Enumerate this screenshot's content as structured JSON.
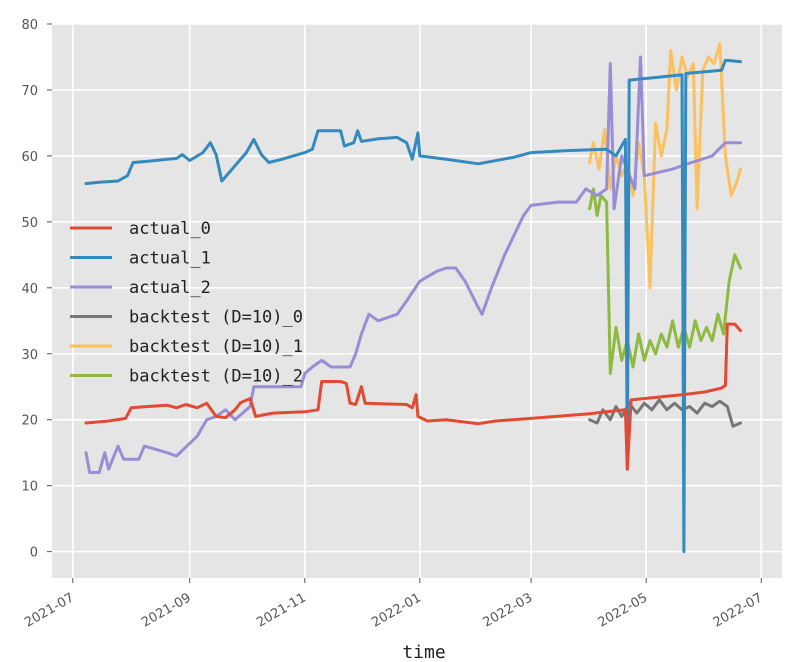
{
  "chart_data": {
    "type": "line",
    "title": "",
    "xlabel": "time",
    "ylabel": "",
    "xlim": [
      "2021-06-20",
      "2022-07-12"
    ],
    "ylim": [
      -4,
      80
    ],
    "x_ticks": [
      "2021-07-01",
      "2021-09-01",
      "2021-11-01",
      "2022-01-01",
      "2022-03-01",
      "2022-05-01",
      "2022-07-01"
    ],
    "x_tick_labels": [
      "2021-07",
      "2021-09",
      "2021-11",
      "2022-01",
      "2022-03",
      "2022-05",
      "2022-07"
    ],
    "y_ticks": [
      0,
      10,
      20,
      30,
      40,
      50,
      60,
      70,
      80
    ],
    "grid": true,
    "legend_position": "center-left",
    "series": [
      {
        "name": "actual_0",
        "color": "#E24A33",
        "points": [
          [
            "2021-07-08",
            19.5
          ],
          [
            "2021-07-20",
            19.8
          ],
          [
            "2021-07-29",
            20.2
          ],
          [
            "2021-08-01",
            21.8
          ],
          [
            "2021-08-10",
            22.0
          ],
          [
            "2021-08-20",
            22.2
          ],
          [
            "2021-08-25",
            21.8
          ],
          [
            "2021-08-30",
            22.3
          ],
          [
            "2021-09-05",
            21.8
          ],
          [
            "2021-09-10",
            22.5
          ],
          [
            "2021-09-15",
            20.5
          ],
          [
            "2021-09-20",
            20.3
          ],
          [
            "2021-09-25",
            21.5
          ],
          [
            "2021-09-28",
            22.6
          ],
          [
            "2021-10-03",
            23.2
          ],
          [
            "2021-10-06",
            20.5
          ],
          [
            "2021-10-15",
            21.0
          ],
          [
            "2021-11-01",
            21.2
          ],
          [
            "2021-11-08",
            21.5
          ],
          [
            "2021-11-10",
            25.8
          ],
          [
            "2021-11-20",
            25.8
          ],
          [
            "2021-11-23",
            25.5
          ],
          [
            "2021-11-25",
            22.5
          ],
          [
            "2021-11-28",
            22.3
          ],
          [
            "2021-12-01",
            25.0
          ],
          [
            "2021-12-03",
            22.5
          ],
          [
            "2021-12-25",
            22.3
          ],
          [
            "2021-12-28",
            21.8
          ],
          [
            "2021-12-30",
            23.8
          ],
          [
            "2021-12-31",
            20.5
          ],
          [
            "2022-01-05",
            19.8
          ],
          [
            "2022-01-15",
            20.0
          ],
          [
            "2022-02-01",
            19.4
          ],
          [
            "2022-02-10",
            19.8
          ],
          [
            "2022-03-01",
            20.2
          ],
          [
            "2022-04-01",
            20.9
          ],
          [
            "2022-04-10",
            21.2
          ],
          [
            "2022-04-20",
            21.5
          ],
          [
            "2022-04-21",
            12.5
          ],
          [
            "2022-04-23",
            23.0
          ],
          [
            "2022-05-10",
            23.5
          ],
          [
            "2022-05-20",
            23.8
          ],
          [
            "2022-06-01",
            24.2
          ],
          [
            "2022-06-10",
            24.8
          ],
          [
            "2022-06-12",
            25.2
          ],
          [
            "2022-06-13",
            34.5
          ],
          [
            "2022-06-17",
            34.5
          ],
          [
            "2022-06-20",
            33.5
          ]
        ]
      },
      {
        "name": "actual_1",
        "color": "#348ABD",
        "points": [
          [
            "2021-07-08",
            55.8
          ],
          [
            "2021-07-15",
            56.0
          ],
          [
            "2021-07-25",
            56.2
          ],
          [
            "2021-07-30",
            57.0
          ],
          [
            "2021-08-02",
            59.0
          ],
          [
            "2021-08-10",
            59.2
          ],
          [
            "2021-08-20",
            59.5
          ],
          [
            "2021-08-25",
            59.6
          ],
          [
            "2021-08-28",
            60.2
          ],
          [
            "2021-09-01",
            59.3
          ],
          [
            "2021-09-08",
            60.5
          ],
          [
            "2021-09-12",
            62.0
          ],
          [
            "2021-09-15",
            60.2
          ],
          [
            "2021-09-18",
            56.2
          ],
          [
            "2021-09-22",
            57.5
          ],
          [
            "2021-10-01",
            60.5
          ],
          [
            "2021-10-05",
            62.5
          ],
          [
            "2021-10-09",
            60.2
          ],
          [
            "2021-10-13",
            59.0
          ],
          [
            "2021-10-20",
            59.5
          ],
          [
            "2021-11-01",
            60.5
          ],
          [
            "2021-11-05",
            61.0
          ],
          [
            "2021-11-08",
            63.8
          ],
          [
            "2021-11-20",
            63.8
          ],
          [
            "2021-11-22",
            61.5
          ],
          [
            "2021-11-27",
            62.0
          ],
          [
            "2021-11-29",
            63.8
          ],
          [
            "2021-12-01",
            62.2
          ],
          [
            "2021-12-10",
            62.6
          ],
          [
            "2021-12-20",
            62.8
          ],
          [
            "2021-12-25",
            62.0
          ],
          [
            "2021-12-28",
            59.5
          ],
          [
            "2021-12-31",
            63.5
          ],
          [
            "2022-01-01",
            60.0
          ],
          [
            "2022-01-15",
            59.5
          ],
          [
            "2022-02-01",
            58.8
          ],
          [
            "2022-02-20",
            59.8
          ],
          [
            "2022-03-01",
            60.5
          ],
          [
            "2022-03-20",
            60.8
          ],
          [
            "2022-04-10",
            61.0
          ],
          [
            "2022-04-15",
            60.0
          ],
          [
            "2022-04-20",
            62.5
          ],
          [
            "2022-04-21",
            13.0
          ],
          [
            "2022-04-22",
            71.5
          ],
          [
            "2022-05-10",
            72.0
          ],
          [
            "2022-05-20",
            72.3
          ],
          [
            "2022-05-21",
            0.0
          ],
          [
            "2022-05-22",
            72.5
          ],
          [
            "2022-06-10",
            73.0
          ],
          [
            "2022-06-12",
            74.5
          ],
          [
            "2022-06-20",
            74.3
          ]
        ]
      },
      {
        "name": "actual_2",
        "color": "#988ED5",
        "points": [
          [
            "2021-07-08",
            15.0
          ],
          [
            "2021-07-10",
            12.0
          ],
          [
            "2021-07-15",
            12.0
          ],
          [
            "2021-07-18",
            15.0
          ],
          [
            "2021-07-20",
            12.5
          ],
          [
            "2021-07-25",
            16.0
          ],
          [
            "2021-07-28",
            14.0
          ],
          [
            "2021-08-05",
            14.0
          ],
          [
            "2021-08-08",
            16.0
          ],
          [
            "2021-08-20",
            15.0
          ],
          [
            "2021-08-25",
            14.5
          ],
          [
            "2021-09-05",
            17.5
          ],
          [
            "2021-09-10",
            20.0
          ],
          [
            "2021-09-15",
            20.5
          ],
          [
            "2021-09-20",
            21.5
          ],
          [
            "2021-09-25",
            20.0
          ],
          [
            "2021-10-03",
            22.0
          ],
          [
            "2021-10-05",
            25.0
          ],
          [
            "2021-10-30",
            25.0
          ],
          [
            "2021-11-01",
            27.0
          ],
          [
            "2021-11-05",
            28.0
          ],
          [
            "2021-11-10",
            29.0
          ],
          [
            "2021-11-15",
            28.0
          ],
          [
            "2021-11-25",
            28.0
          ],
          [
            "2021-11-28",
            30.0
          ],
          [
            "2021-12-01",
            33.0
          ],
          [
            "2021-12-05",
            36.0
          ],
          [
            "2021-12-10",
            35.0
          ],
          [
            "2021-12-20",
            36.0
          ],
          [
            "2021-12-25",
            38.0
          ],
          [
            "2022-01-01",
            41.0
          ],
          [
            "2022-01-10",
            42.5
          ],
          [
            "2022-01-15",
            43.0
          ],
          [
            "2022-01-20",
            43.0
          ],
          [
            "2022-01-25",
            41.0
          ],
          [
            "2022-02-01",
            37.0
          ],
          [
            "2022-02-03",
            36.0
          ],
          [
            "2022-02-08",
            40.0
          ],
          [
            "2022-02-15",
            45.0
          ],
          [
            "2022-02-25",
            51.0
          ],
          [
            "2022-03-01",
            52.5
          ],
          [
            "2022-03-15",
            53.0
          ],
          [
            "2022-03-25",
            53.0
          ],
          [
            "2022-03-30",
            55.0
          ],
          [
            "2022-04-05",
            54.0
          ],
          [
            "2022-04-10",
            55.0
          ],
          [
            "2022-04-12",
            74.0
          ],
          [
            "2022-04-14",
            52.0
          ],
          [
            "2022-04-18",
            60.0
          ],
          [
            "2022-04-25",
            55.0
          ],
          [
            "2022-04-28",
            75.0
          ],
          [
            "2022-04-30",
            57.0
          ],
          [
            "2022-05-15",
            58.0
          ],
          [
            "2022-05-25",
            59.0
          ],
          [
            "2022-06-05",
            60.0
          ],
          [
            "2022-06-12",
            62.0
          ],
          [
            "2022-06-20",
            62.0
          ]
        ]
      },
      {
        "name": "backtest (D=10)_0",
        "color": "#777777",
        "points": [
          [
            "2022-04-01",
            20.0
          ],
          [
            "2022-04-05",
            19.5
          ],
          [
            "2022-04-08",
            21.5
          ],
          [
            "2022-04-12",
            20.0
          ],
          [
            "2022-04-15",
            22.0
          ],
          [
            "2022-04-18",
            20.5
          ],
          [
            "2022-04-22",
            22.5
          ],
          [
            "2022-04-26",
            21.0
          ],
          [
            "2022-04-30",
            22.5
          ],
          [
            "2022-05-04",
            21.5
          ],
          [
            "2022-05-08",
            23.0
          ],
          [
            "2022-05-12",
            21.5
          ],
          [
            "2022-05-16",
            22.5
          ],
          [
            "2022-05-20",
            21.5
          ],
          [
            "2022-05-24",
            22.0
          ],
          [
            "2022-05-28",
            21.0
          ],
          [
            "2022-06-01",
            22.5
          ],
          [
            "2022-06-05",
            22.0
          ],
          [
            "2022-06-09",
            22.8
          ],
          [
            "2022-06-13",
            22.0
          ],
          [
            "2022-06-16",
            19.0
          ],
          [
            "2022-06-20",
            19.5
          ]
        ]
      },
      {
        "name": "backtest (D=10)_1",
        "color": "#FBC15E",
        "points": [
          [
            "2022-04-01",
            59.0
          ],
          [
            "2022-04-03",
            62.0
          ],
          [
            "2022-04-06",
            58.0
          ],
          [
            "2022-04-09",
            64.0
          ],
          [
            "2022-04-12",
            55.0
          ],
          [
            "2022-04-15",
            60.0
          ],
          [
            "2022-04-18",
            57.0
          ],
          [
            "2022-04-21",
            59.0
          ],
          [
            "2022-04-24",
            54.0
          ],
          [
            "2022-04-27",
            62.0
          ],
          [
            "2022-04-30",
            57.0
          ],
          [
            "2022-05-03",
            40.0
          ],
          [
            "2022-05-06",
            65.0
          ],
          [
            "2022-05-09",
            60.0
          ],
          [
            "2022-05-12",
            64.0
          ],
          [
            "2022-05-14",
            76.0
          ],
          [
            "2022-05-17",
            70.0
          ],
          [
            "2022-05-20",
            75.0
          ],
          [
            "2022-05-23",
            72.0
          ],
          [
            "2022-05-26",
            74.0
          ],
          [
            "2022-05-28",
            52.0
          ],
          [
            "2022-05-31",
            73.0
          ],
          [
            "2022-06-03",
            75.0
          ],
          [
            "2022-06-06",
            74.0
          ],
          [
            "2022-06-09",
            77.0
          ],
          [
            "2022-06-12",
            60.0
          ],
          [
            "2022-06-15",
            54.0
          ],
          [
            "2022-06-18",
            56.0
          ],
          [
            "2022-06-20",
            58.0
          ]
        ]
      },
      {
        "name": "backtest (D=10)_2",
        "color": "#8EBA42",
        "points": [
          [
            "2022-04-01",
            52.0
          ],
          [
            "2022-04-03",
            55.0
          ],
          [
            "2022-04-05",
            51.0
          ],
          [
            "2022-04-07",
            54.0
          ],
          [
            "2022-04-10",
            53.0
          ],
          [
            "2022-04-12",
            27.0
          ],
          [
            "2022-04-15",
            34.0
          ],
          [
            "2022-04-18",
            29.0
          ],
          [
            "2022-04-21",
            32.0
          ],
          [
            "2022-04-24",
            28.0
          ],
          [
            "2022-04-27",
            33.0
          ],
          [
            "2022-04-30",
            29.0
          ],
          [
            "2022-05-03",
            32.0
          ],
          [
            "2022-05-06",
            30.0
          ],
          [
            "2022-05-09",
            33.0
          ],
          [
            "2022-05-12",
            31.0
          ],
          [
            "2022-05-15",
            35.0
          ],
          [
            "2022-05-18",
            31.0
          ],
          [
            "2022-05-21",
            34.0
          ],
          [
            "2022-05-24",
            31.0
          ],
          [
            "2022-05-27",
            35.0
          ],
          [
            "2022-05-30",
            32.0
          ],
          [
            "2022-06-02",
            34.0
          ],
          [
            "2022-06-05",
            32.0
          ],
          [
            "2022-06-08",
            36.0
          ],
          [
            "2022-06-11",
            33.0
          ],
          [
            "2022-06-14",
            41.0
          ],
          [
            "2022-06-17",
            45.0
          ],
          [
            "2022-06-20",
            43.0
          ]
        ]
      }
    ]
  }
}
